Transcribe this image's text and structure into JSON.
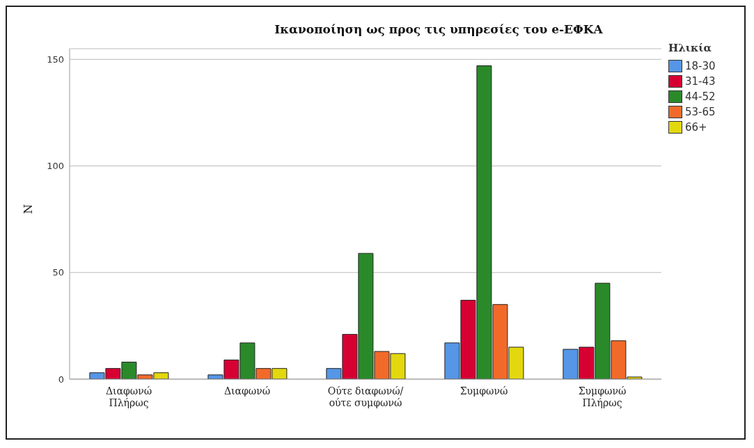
{
  "chart_data": {
    "type": "bar",
    "title": "Ικανοποίηση ως προς τις υπηρεσίες του e-ΕΦΚΑ",
    "ylabel": "N",
    "legend_title": "Ηλικία",
    "categories": [
      "Διαφωνώ Πλήρως",
      "Διαφωνώ",
      "Ούτε διαφωνώ/ ούτε συμφωνώ",
      "Συμφωνώ",
      "Συμφωνώ Πλήρως"
    ],
    "series": [
      {
        "name": "18-30",
        "color": "#5596e6",
        "values": [
          3,
          2,
          5,
          17,
          14
        ]
      },
      {
        "name": "31-43",
        "color": "#d70033",
        "values": [
          5,
          9,
          21,
          37,
          15
        ]
      },
      {
        "name": "44-52",
        "color": "#2a8a2a",
        "values": [
          8,
          17,
          59,
          147,
          45
        ]
      },
      {
        "name": "53-65",
        "color": "#f26a2a",
        "values": [
          2,
          5,
          13,
          35,
          18
        ]
      },
      {
        "name": "66+",
        "color": "#e3d80e",
        "values": [
          3,
          5,
          12,
          15,
          1
        ]
      }
    ],
    "ylim": [
      0,
      155
    ],
    "yticks": [
      0,
      50,
      100,
      150
    ],
    "grid": "y",
    "legend": "top right"
  }
}
